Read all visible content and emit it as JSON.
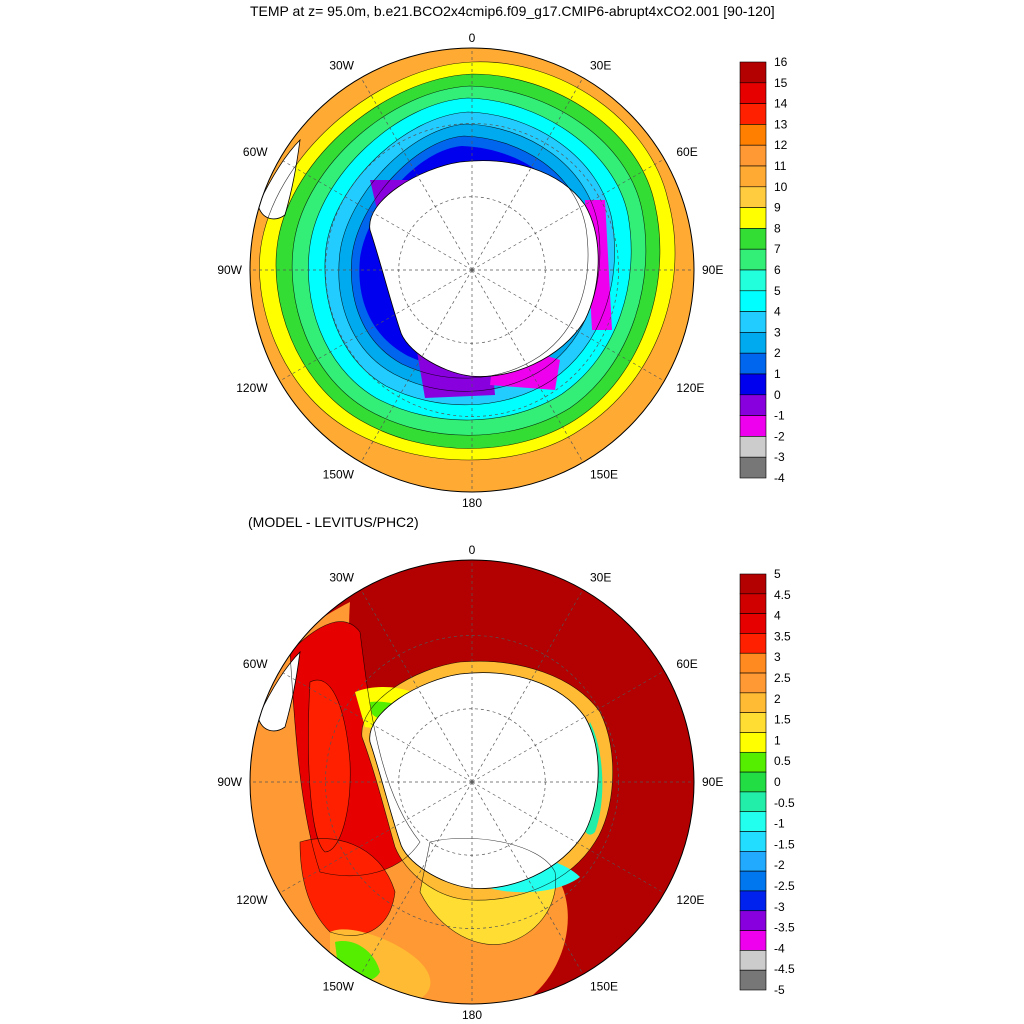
{
  "title": "TEMP at z=  95.0m, b.e21.BCO2x4cmip6.f09_g17.CMIP6-abrupt4xCO2.001 [90-120]",
  "subtitle": "(MODEL - LEVITUS/PHC2)",
  "longitude_labels": [
    "0",
    "30E",
    "60E",
    "90E",
    "120E",
    "150E",
    "180",
    "150W",
    "120W",
    "90W",
    "60W",
    "30W"
  ],
  "top_panel": {
    "colorbar": {
      "labels": [
        "16",
        "15",
        "14",
        "13",
        "12",
        "11",
        "10",
        "9",
        "8",
        "7",
        "6",
        "5",
        "4",
        "3",
        "2",
        "1",
        "0",
        "-1",
        "-2",
        "-3",
        "-4"
      ],
      "colors": [
        "#b30000",
        "#e60000",
        "#ff2000",
        "#ff8000",
        "#ff9933",
        "#ffaa33",
        "#ffcc40",
        "#ffff00",
        "#33dd33",
        "#33ee77",
        "#22ffdd",
        "#00ffff",
        "#22ccff",
        "#00aaee",
        "#0066ee",
        "#0000ee",
        "#8800dd",
        "#ee00ee",
        "#cccccc",
        "#777777"
      ]
    }
  },
  "bottom_panel": {
    "colorbar": {
      "labels": [
        "5",
        "4.5",
        "4",
        "3.5",
        "3",
        "2.5",
        "2",
        "1.5",
        "1",
        "0.5",
        "0",
        "-0.5",
        "-1",
        "-1.5",
        "-2",
        "-2.5",
        "-3",
        "-3.5",
        "-4",
        "-4.5",
        "-5"
      ],
      "colors": [
        "#b30000",
        "#d00000",
        "#e60000",
        "#ff2000",
        "#ff8a20",
        "#ff9933",
        "#ffbb33",
        "#ffdd33",
        "#ffff00",
        "#55ee00",
        "#22dd44",
        "#22eeaa",
        "#22ffee",
        "#22ddff",
        "#22aaff",
        "#0077ee",
        "#0022ee",
        "#8800dd",
        "#ee00ee",
        "#cccccc",
        "#777777"
      ]
    }
  }
}
